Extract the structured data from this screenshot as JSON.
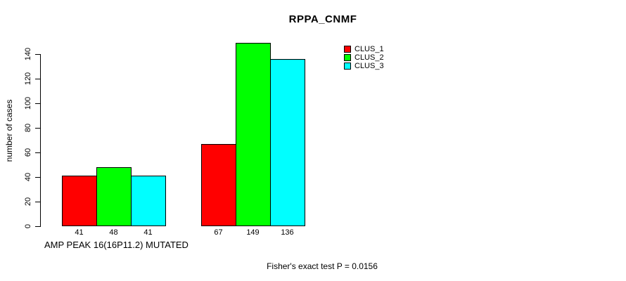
{
  "title": "RPPA_CNMF",
  "colors": {
    "background": "#ffffff",
    "axis": "#000000",
    "text": "#000000"
  },
  "chart_data": {
    "type": "bar",
    "title": "RPPA_CNMF",
    "ylabel": "number of cases",
    "xlabel": "AMP PEAK 16(16P11.2) MUTATED",
    "annotation": "Fisher's exact test P = 0.0156",
    "categories": [
      "AMP PEAK 16(16P11.2) MUTATED",
      ""
    ],
    "series": [
      {
        "name": "CLUS_1",
        "color": "#ff0000",
        "values": [
          41,
          67
        ]
      },
      {
        "name": "CLUS_2",
        "color": "#00ff00",
        "values": [
          48,
          149
        ]
      },
      {
        "name": "CLUS_3",
        "color": "#00ffff",
        "values": [
          41,
          136
        ]
      }
    ],
    "yticks": [
      0,
      20,
      40,
      60,
      80,
      100,
      120,
      140
    ],
    "ylim": [
      0,
      150
    ],
    "bar_value_labels": true,
    "grid": false,
    "legend_position": "top-right"
  }
}
